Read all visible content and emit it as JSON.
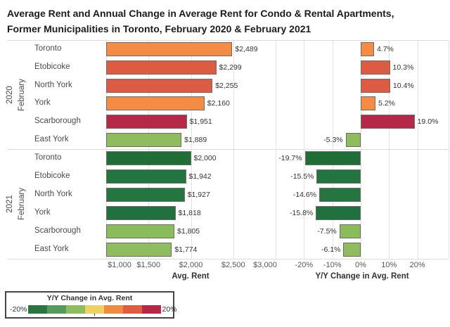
{
  "header": {
    "line1": "Average Rent and Annual Change in Average Rent for Condo & Rental Apartments,",
    "line2": "Former Municipalities in Toronto, February 2020 & February 2021"
  },
  "chart_data": {
    "type": "bar",
    "title": "Average Rent and Annual Change in Average Rent for Condo & Rental Apartments, Former Municipalities in Toronto, February 2020 & February 2021",
    "layout_note": "two horizontal-bar panels sharing row categories; left = Avg. Rent, right = Y/Y Change; grid on; bars colored by Y/Y change ramp",
    "groups": [
      {
        "year": "2020",
        "month": "February",
        "rows": [
          {
            "label": "Toronto",
            "avg_rent": 2489,
            "rent_label": "$2,489",
            "yoy": 4.7,
            "yoy_label": "4.7%",
            "color": "#F58C46"
          },
          {
            "label": "Etobicoke",
            "avg_rent": 2299,
            "rent_label": "$2,299",
            "yoy": 10.3,
            "yoy_label": "10.3%",
            "color": "#DD5B42"
          },
          {
            "label": "North York",
            "avg_rent": 2255,
            "rent_label": "$2,255",
            "yoy": 10.4,
            "yoy_label": "10.4%",
            "color": "#DD5B42"
          },
          {
            "label": "York",
            "avg_rent": 2160,
            "rent_label": "$2,160",
            "yoy": 5.2,
            "yoy_label": "5.2%",
            "color": "#F58C46"
          },
          {
            "label": "Scarborough",
            "avg_rent": 1951,
            "rent_label": "$1,951",
            "yoy": 19.0,
            "yoy_label": "19.0%",
            "color": "#B62847"
          },
          {
            "label": "East York",
            "avg_rent": 1889,
            "rent_label": "$1,889",
            "yoy": -5.3,
            "yoy_label": "-5.3%",
            "color": "#8EBC5E"
          }
        ]
      },
      {
        "year": "2021",
        "month": "February",
        "rows": [
          {
            "label": "Toronto",
            "avg_rent": 2000,
            "rent_label": "$2,000",
            "yoy": -19.7,
            "yoy_label": "-19.7%",
            "color": "#1F6E38"
          },
          {
            "label": "Etobicoke",
            "avg_rent": 1942,
            "rent_label": "$1,942",
            "yoy": -15.5,
            "yoy_label": "-15.5%",
            "color": "#227441"
          },
          {
            "label": "North York",
            "avg_rent": 1927,
            "rent_label": "$1,927",
            "yoy": -14.6,
            "yoy_label": "-14.6%",
            "color": "#24753F"
          },
          {
            "label": "York",
            "avg_rent": 1818,
            "rent_label": "$1,818",
            "yoy": -15.8,
            "yoy_label": "-15.8%",
            "color": "#217140"
          },
          {
            "label": "Scarborough",
            "avg_rent": 1805,
            "rent_label": "$1,805",
            "yoy": -7.5,
            "yoy_label": "-7.5%",
            "color": "#8ABC5C"
          },
          {
            "label": "East York",
            "avg_rent": 1774,
            "rent_label": "$1,774",
            "yoy": -6.1,
            "yoy_label": "-6.1%",
            "color": "#8EBC5E"
          }
        ]
      }
    ],
    "rent_axis": {
      "title": "Avg. Rent",
      "min": 1000,
      "max": 3000,
      "ticks": [
        {
          "v": 1000,
          "label": "$1,000"
        },
        {
          "v": 1500,
          "label": "$1,500"
        },
        {
          "v": 2000,
          "label": "$2,000"
        },
        {
          "v": 2500,
          "label": "$2,500"
        },
        {
          "v": 3000,
          "label": "$3,000"
        }
      ],
      "gridlines": [
        1500,
        2000,
        2500
      ]
    },
    "change_axis": {
      "title": "Y/Y Change in Avg. Rent",
      "min": -30,
      "max": 31,
      "ticks": [
        {
          "v": -20,
          "label": "-20%"
        },
        {
          "v": -10,
          "label": "-10%"
        },
        {
          "v": 0,
          "label": "0%"
        },
        {
          "v": 10,
          "label": "10%"
        },
        {
          "v": 20,
          "label": "20%"
        }
      ],
      "gridlines": [
        -20,
        -10,
        0,
        10,
        20
      ]
    }
  },
  "legend": {
    "title": "Y/Y Change in Avg. Rent",
    "min_label": "-20%",
    "max_label": "20%",
    "ramp_colors": [
      "#2A7540",
      "#549B5C",
      "#8EBC5E",
      "#EED162",
      "#F08B44",
      "#DD5C42",
      "#B62846"
    ]
  },
  "colors": {
    "grid": "#e3e3e3",
    "separator": "#dcdcdc",
    "bar_border": "#716b63"
  }
}
